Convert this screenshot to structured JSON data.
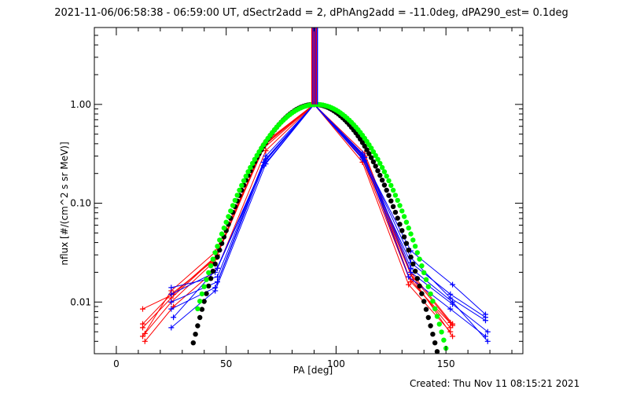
{
  "chart_data": {
    "type": "scatter",
    "title": "2021-11-06/06:58:38 - 06:59:00 UT, dSectr2add = 2, dPhAng2add = -11.0deg, dPA290_est=  0.1deg",
    "xlabel": "PA [deg]",
    "ylabel": "nflux [#/(cm^2 s sr MeV)]",
    "xlim": [
      -10,
      185
    ],
    "ylim": [
      0.003,
      6.0
    ],
    "yscale": "log",
    "grid": false,
    "x_ticks": [
      {
        "value": 0,
        "label": "0"
      },
      {
        "value": 50,
        "label": "50"
      },
      {
        "value": 100,
        "label": "100"
      },
      {
        "value": 150,
        "label": "150"
      }
    ],
    "y_ticks": [
      {
        "value": 0.01,
        "label": "0.01"
      },
      {
        "value": 0.1,
        "label": "0.10"
      },
      {
        "value": 1.0,
        "label": "1.00"
      }
    ],
    "colors": {
      "red": "#ff0000",
      "blue": "#0000ff",
      "green": "#00ff00",
      "black": "#000000"
    },
    "vertical_lines": {
      "x": [
        89.0,
        89.5,
        90.0,
        90.5,
        91.0,
        91.5
      ],
      "y_from": 1.0,
      "y_to": 6.0,
      "colors": [
        "#ff0000",
        "#0000ff",
        "#ff0000",
        "#0000ff",
        "#ff0000",
        "#0000ff"
      ]
    },
    "series": [
      {
        "color": "red",
        "x": [
          12,
          26,
          46,
          68,
          90,
          113,
          134,
          153
        ],
        "y": [
          0.0085,
          0.012,
          0.03,
          0.42,
          1.0,
          0.3,
          0.02,
          0.006
        ]
      },
      {
        "color": "red",
        "x": [
          12,
          25,
          45,
          67,
          90,
          112,
          133,
          152
        ],
        "y": [
          0.0055,
          0.011,
          0.028,
          0.38,
          1.0,
          0.28,
          0.018,
          0.0055
        ]
      },
      {
        "color": "red",
        "x": [
          13,
          25,
          44,
          67,
          90,
          113,
          134,
          153
        ],
        "y": [
          0.0048,
          0.01,
          0.025,
          0.36,
          1.0,
          0.3,
          0.016,
          0.0058
        ]
      },
      {
        "color": "red",
        "x": [
          12,
          25,
          45,
          68,
          90,
          112,
          133,
          152
        ],
        "y": [
          0.0045,
          0.013,
          0.032,
          0.4,
          1.0,
          0.26,
          0.015,
          0.005
        ]
      },
      {
        "color": "red",
        "x": [
          13,
          26,
          46,
          68,
          90,
          113,
          135,
          153
        ],
        "y": [
          0.004,
          0.009,
          0.022,
          0.34,
          1.0,
          0.32,
          0.017,
          0.0045
        ]
      },
      {
        "color": "red",
        "x": [
          12,
          25,
          45,
          67,
          90,
          112,
          134,
          152
        ],
        "y": [
          0.006,
          0.012,
          0.027,
          0.39,
          1.0,
          0.29,
          0.019,
          0.0062
        ]
      },
      {
        "color": "blue",
        "x": [
          25,
          46,
          68,
          90,
          112,
          134,
          153,
          168
        ],
        "y": [
          0.014,
          0.018,
          0.3,
          1.0,
          0.3,
          0.033,
          0.015,
          0.0075
        ]
      },
      {
        "color": "blue",
        "x": [
          25,
          45,
          68,
          90,
          112,
          134,
          152,
          168
        ],
        "y": [
          0.012,
          0.02,
          0.28,
          1.0,
          0.28,
          0.025,
          0.012,
          0.007
        ]
      },
      {
        "color": "blue",
        "x": [
          25,
          46,
          67,
          90,
          113,
          134,
          153,
          169
        ],
        "y": [
          0.01,
          0.016,
          0.26,
          1.0,
          0.27,
          0.02,
          0.0095,
          0.005
        ]
      },
      {
        "color": "blue",
        "x": [
          25,
          45,
          67,
          90,
          112,
          133,
          152,
          168
        ],
        "y": [
          0.0085,
          0.014,
          0.24,
          1.0,
          0.32,
          0.018,
          0.0085,
          0.0045
        ]
      },
      {
        "color": "blue",
        "x": [
          26,
          46,
          68,
          90,
          113,
          134,
          153,
          169
        ],
        "y": [
          0.007,
          0.022,
          0.27,
          1.0,
          0.29,
          0.022,
          0.01,
          0.004
        ]
      },
      {
        "color": "blue",
        "x": [
          25,
          45,
          68,
          90,
          112,
          134,
          152,
          168
        ],
        "y": [
          0.0055,
          0.013,
          0.25,
          1.0,
          0.31,
          0.028,
          0.011,
          0.0065
        ]
      }
    ],
    "fits": [
      {
        "color": "black",
        "marker": "dot",
        "center": 90,
        "sigma": 16.5,
        "x_range": [
          35,
          148
        ]
      },
      {
        "color": "green",
        "marker": "dot",
        "center": 91,
        "sigma": 17.5,
        "x_range": [
          37,
          150
        ]
      }
    ]
  },
  "footer": {
    "created": "Created: Thu Nov 11 08:15:21 2021"
  }
}
